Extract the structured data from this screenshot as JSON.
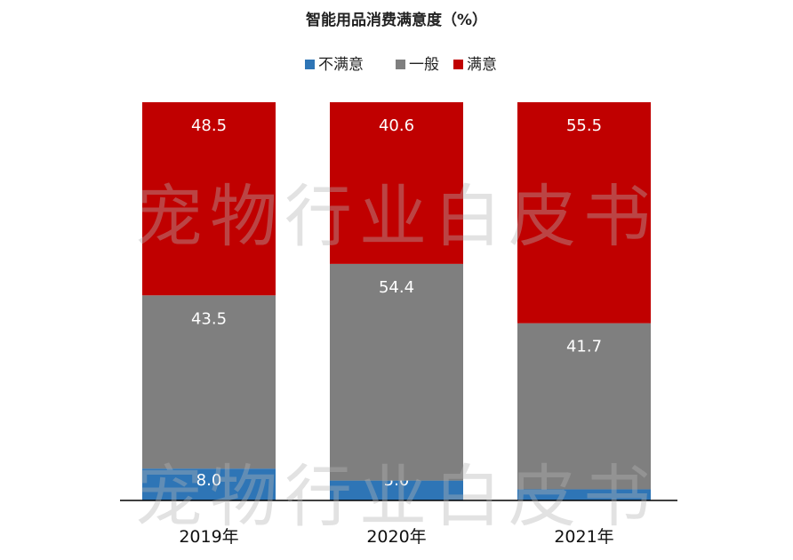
{
  "chart_data": {
    "type": "bar",
    "stacked": true,
    "title": "智能用品消费满意度（%）",
    "categories": [
      "2019年",
      "2020年",
      "2021年"
    ],
    "series": [
      {
        "name": "不满意",
        "color": "#2e75b6",
        "values": [
          8.0,
          5.0,
          2.8
        ]
      },
      {
        "name": "一般",
        "color": "#7f7f7f",
        "values": [
          43.5,
          54.4,
          41.7
        ]
      },
      {
        "name": "满意",
        "color": "#c00000",
        "values": [
          48.5,
          40.6,
          55.5
        ]
      }
    ],
    "ylim": [
      0,
      100
    ],
    "grid": false,
    "legend_position": "top-center",
    "watermark": "宠物行业白皮书"
  }
}
